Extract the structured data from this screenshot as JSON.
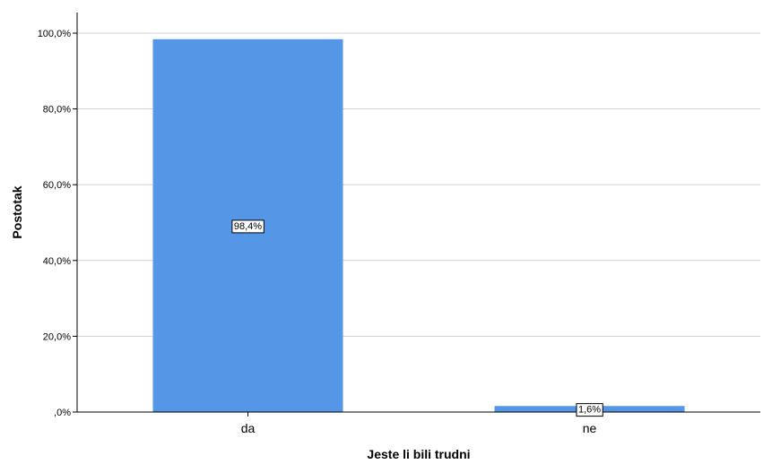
{
  "chart_data": {
    "type": "bar",
    "categories": [
      "da",
      "ne"
    ],
    "values": [
      98.4,
      1.6
    ],
    "data_labels": [
      "98,4%",
      "1,6%"
    ],
    "xlabel": "Jeste li bili trudni",
    "ylabel": "Postotak",
    "ylim": [
      0,
      100
    ],
    "yticks": [
      0,
      20,
      40,
      60,
      80,
      100
    ],
    "ytick_labels": [
      ",0%",
      "20,0%",
      "40,0%",
      "60,0%",
      "80,0%",
      "100,0%"
    ],
    "grid": true,
    "legend": "none",
    "bar_color": "#5596e6"
  }
}
